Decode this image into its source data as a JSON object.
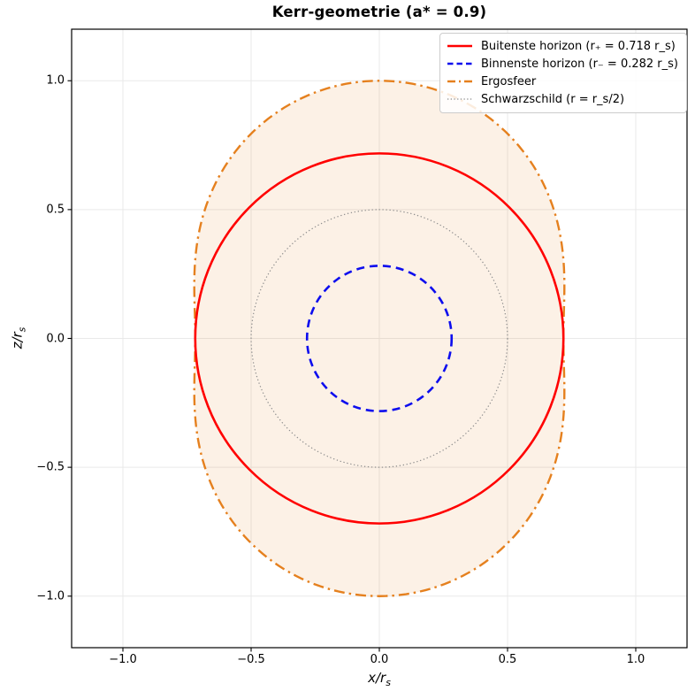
{
  "figure": {
    "title": "Kerr-geometrie (a* = 0.9)"
  },
  "axes": {
    "x_label_main": "x/r",
    "x_label_sub": "s",
    "y_label_main": "z/r",
    "y_label_sub": "s"
  },
  "chart_data": {
    "type": "line",
    "title": "Kerr-geometrie (a* = 0.9)",
    "xlabel": "x/r_s",
    "ylabel": "z/r_s",
    "xlim": [
      -1.2,
      1.2
    ],
    "ylim": [
      -1.2,
      1.2
    ],
    "xticks": [
      -1.0,
      -0.5,
      0.0,
      0.5,
      1.0
    ],
    "xtick_labels": [
      "−1.0",
      "−0.5",
      "0.0",
      "0.5",
      "1.0"
    ],
    "yticks": [
      -1.0,
      -0.5,
      0.0,
      0.5,
      1.0
    ],
    "ytick_labels": [
      "−1.0",
      "−0.5",
      "0.0",
      "0.5",
      "1.0"
    ],
    "grid": true,
    "grid_color": "#e9e9e9",
    "legend_position": "upper right",
    "spin_parameter": 0.9,
    "series": [
      {
        "key": "outer-horizon",
        "name": "Buitenste horizon (r₊ = 0.718 r_s)",
        "shape": "circle",
        "radius": 0.718,
        "color": "#ff0000",
        "style": "solid",
        "line_width": 2.6
      },
      {
        "key": "inner-horizon",
        "name": "Binnenste horizon (r₋ = 0.282 r_s)",
        "shape": "circle",
        "radius": 0.282,
        "color": "#0d0dee",
        "style": "dashed",
        "line_width": 2.6
      },
      {
        "key": "ergosphere",
        "name": "Ergosfeer",
        "shape": "kerr-ergosphere",
        "x_extent": 0.718,
        "z_extent": 1.0,
        "color": "#e5801e",
        "style": "dashdot",
        "line_width": 2.4,
        "fill_color": "rgba(229,128,30,0.11)"
      },
      {
        "key": "schwarzschild",
        "name": "Schwarzschild (r = r_s/2)",
        "shape": "circle",
        "radius": 0.5,
        "color": "#8c8c8c",
        "style": "dotted",
        "line_width": 1.2
      }
    ]
  }
}
